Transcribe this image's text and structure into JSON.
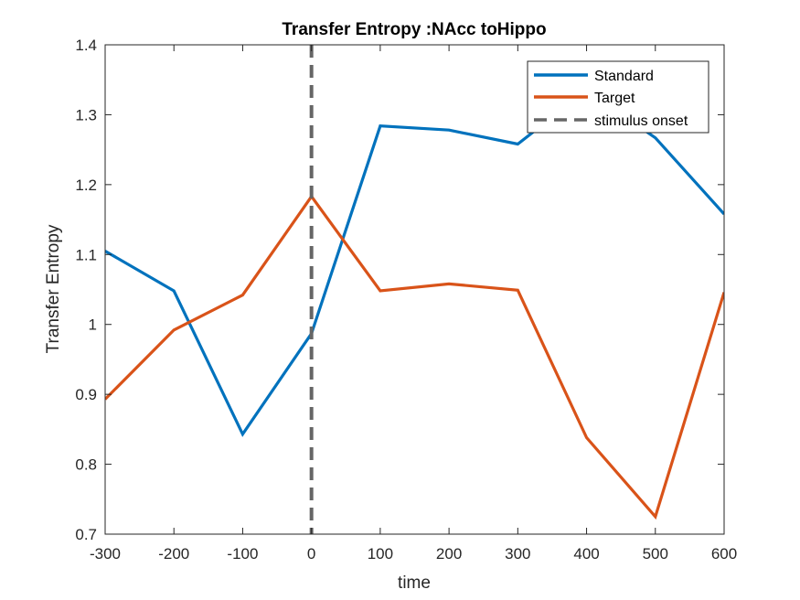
{
  "chart_data": {
    "type": "line",
    "title": "Transfer Entropy :NAcc toHippo",
    "xlabel": "time",
    "ylabel": "Transfer Entropy",
    "xlim": [
      -300,
      600
    ],
    "ylim": [
      0.7,
      1.4
    ],
    "x_ticks": [
      "-300",
      "-200",
      "-100",
      "0",
      "100",
      "200",
      "300",
      "400",
      "500",
      "600"
    ],
    "y_ticks": [
      "0.7",
      "0.8",
      "0.9",
      "1",
      "1.1",
      "1.2",
      "1.3",
      "1.4"
    ],
    "x": [
      -300,
      -200,
      -100,
      0,
      100,
      200,
      300,
      400,
      500,
      600
    ],
    "grid": false,
    "legend_position": "top-right",
    "series": [
      {
        "name": "Standard",
        "color": "#0072BD",
        "values": [
          1.105,
          1.048,
          0.843,
          0.987,
          1.284,
          1.278,
          1.258,
          1.335,
          1.267,
          1.158
        ]
      },
      {
        "name": "Target",
        "color": "#D95319",
        "values": [
          0.893,
          0.992,
          1.042,
          1.183,
          1.048,
          1.058,
          1.049,
          0.838,
          0.725,
          1.046
        ]
      }
    ],
    "vline": {
      "name": "stimulus onset",
      "x": 0,
      "color": "#666666",
      "style": "dashed"
    }
  }
}
